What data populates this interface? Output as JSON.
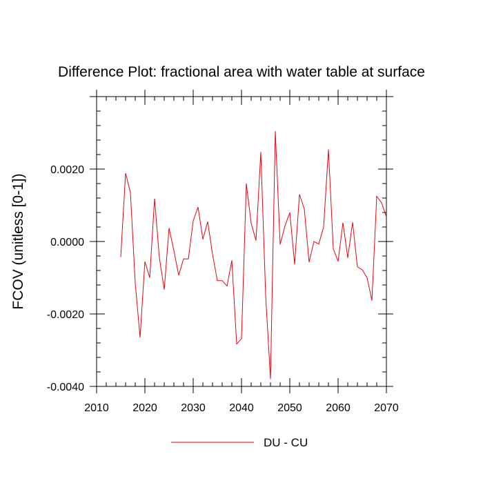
{
  "chart_data": {
    "type": "line",
    "title": "Difference Plot: fractional area with water table at surface",
    "xlabel": "",
    "ylabel": "FCOV  (unitless [0-1])",
    "xlim": [
      2010,
      2070
    ],
    "ylim": [
      -0.004,
      0.004
    ],
    "x_ticks": [
      "2010",
      "2020",
      "2030",
      "2040",
      "2050",
      "2060",
      "2070"
    ],
    "x_tick_values": [
      2010,
      2020,
      2030,
      2040,
      2050,
      2060,
      2070
    ],
    "y_ticks": [
      "-0.0040",
      "-0.0020",
      "0.0000",
      "0.0020"
    ],
    "y_tick_values": [
      -0.004,
      -0.002,
      0.0,
      0.002
    ],
    "y_minor_step": 0.0004,
    "x_minor_step": 2,
    "grid": false,
    "legend": "bottom-center",
    "series": [
      {
        "name": "DU - CU",
        "color": "#e8000b",
        "x": [
          2015,
          2016,
          2017,
          2018,
          2019,
          2020,
          2021,
          2022,
          2023,
          2024,
          2025,
          2026,
          2027,
          2028,
          2029,
          2030,
          2031,
          2032,
          2033,
          2034,
          2035,
          2036,
          2037,
          2038,
          2039,
          2040,
          2041,
          2042,
          2043,
          2044,
          2045,
          2046,
          2047,
          2048,
          2049,
          2050,
          2051,
          2052,
          2053,
          2054,
          2055,
          2056,
          2057,
          2058,
          2059,
          2060,
          2061,
          2062,
          2063,
          2064,
          2065,
          2066,
          2067,
          2068,
          2069,
          2070
        ],
        "values": [
          -0.00043,
          0.00189,
          0.00135,
          -0.00115,
          -0.00265,
          -0.00055,
          -0.001,
          0.00118,
          -0.00045,
          -0.00133,
          0.00037,
          -0.00025,
          -0.00093,
          -0.00048,
          -0.00048,
          0.00057,
          0.00095,
          6e-05,
          0.00055,
          -0.00035,
          -0.00108,
          -0.00108,
          -0.00123,
          -0.00052,
          -0.00283,
          -0.00268,
          0.0016,
          0.0005,
          3e-05,
          0.00247,
          -0.00148,
          -0.0038,
          0.00305,
          -8e-05,
          0.00043,
          0.0008,
          -0.00063,
          0.0013,
          0.0009,
          -0.00057,
          0.0,
          -7e-05,
          0.0004,
          0.00254,
          -0.0002,
          -0.00055,
          0.00052,
          -0.00045,
          0.00053,
          -0.0007,
          -0.00078,
          -0.001,
          -0.00163,
          0.00125,
          0.00107,
          0.00068
        ]
      }
    ]
  }
}
